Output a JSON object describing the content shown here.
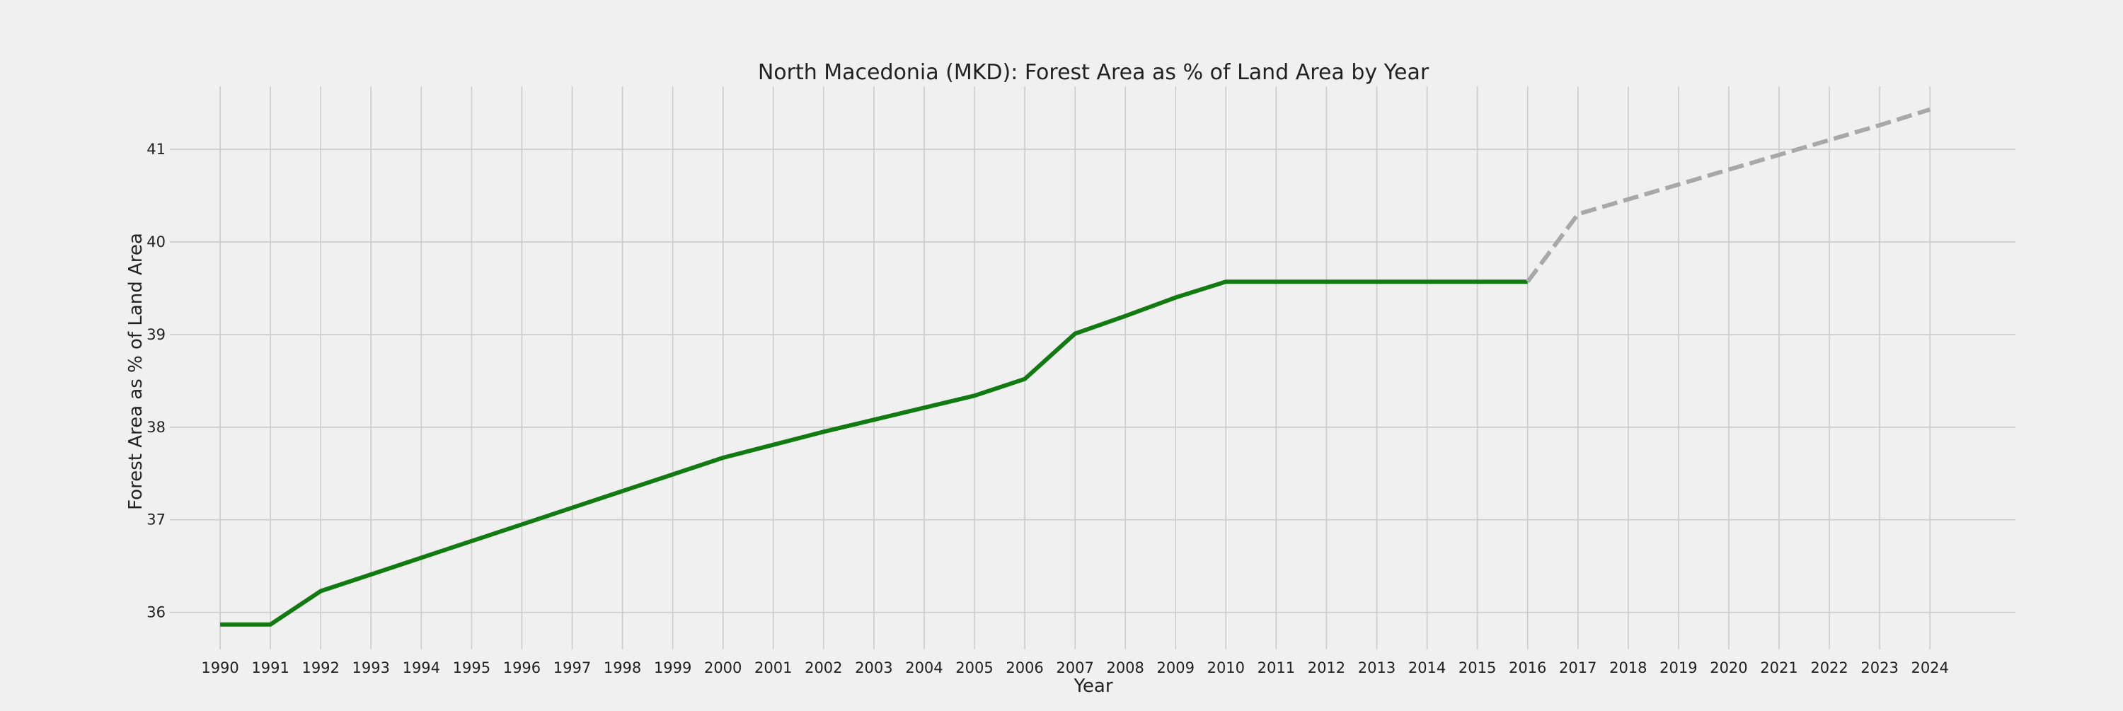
{
  "chart_data": {
    "type": "line",
    "title": "North Macedonia (MKD): Forest Area as % of Land Area by Year",
    "xlabel": "Year",
    "ylabel": "Forest Area as % of Land Area",
    "x": [
      1990,
      1991,
      1992,
      1993,
      1994,
      1995,
      1996,
      1997,
      1998,
      1999,
      2000,
      2001,
      2002,
      2003,
      2004,
      2005,
      2006,
      2007,
      2008,
      2009,
      2010,
      2011,
      2012,
      2013,
      2014,
      2015,
      2016,
      2017,
      2018,
      2019,
      2020,
      2021,
      2022,
      2023,
      2024
    ],
    "series": [
      {
        "color": "#117a11",
        "style": "solid",
        "x": [
          1990,
          1991,
          1992,
          1993,
          1994,
          1995,
          1996,
          1997,
          1998,
          1999,
          2000,
          2001,
          2002,
          2003,
          2004,
          2005,
          2006,
          2007,
          2008,
          2009,
          2010,
          2011,
          2012,
          2013,
          2014,
          2015,
          2016
        ],
        "values": [
          35.87,
          35.87,
          36.23,
          36.41,
          36.59,
          36.77,
          36.95,
          37.13,
          37.31,
          37.49,
          37.67,
          37.81,
          37.95,
          38.08,
          38.21,
          38.34,
          38.52,
          39.01,
          39.2,
          39.4,
          39.57,
          39.57,
          39.57,
          39.57,
          39.57,
          39.57,
          39.57
        ]
      },
      {
        "color": "#a8a8a8",
        "style": "dashed",
        "x": [
          2016,
          2017,
          2018,
          2019,
          2020,
          2021,
          2022,
          2023,
          2024
        ],
        "values": [
          39.57,
          40.3,
          40.46,
          40.62,
          40.78,
          40.94,
          41.1,
          41.26,
          41.43
        ]
      }
    ],
    "yticks": [
      36,
      37,
      38,
      39,
      40,
      41
    ],
    "xlim": [
      1989,
      2025.7
    ],
    "ylim": [
      35.6,
      41.68
    ],
    "grid": true,
    "legend": "none",
    "colors": {
      "background": "#f0f0f0",
      "grid": "#cbcbcb"
    }
  }
}
